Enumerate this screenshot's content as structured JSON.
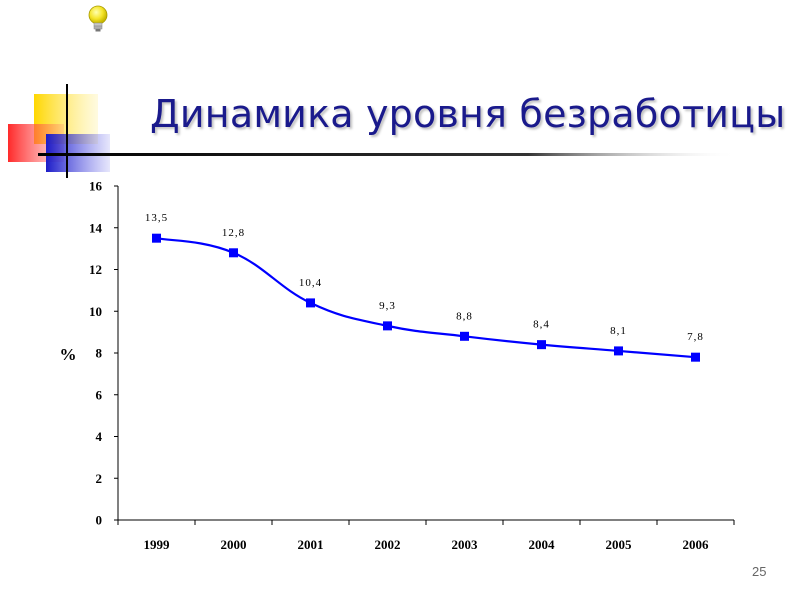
{
  "slide": {
    "title": "Динамика уровня безработицы",
    "page_number": "25",
    "icon": "lightbulb-icon"
  },
  "colors": {
    "title": "#1a1a8c",
    "series": "#0000ff",
    "deco_yellow": "#ffd700",
    "deco_red": "#ff3b3b",
    "deco_blue": "#2b2bd8"
  },
  "chart_data": {
    "type": "line",
    "categories": [
      "1999",
      "2000",
      "2001",
      "2002",
      "2003",
      "2004",
      "2005",
      "2006"
    ],
    "series": [
      {
        "values": [
          13.5,
          12.8,
          10.4,
          9.3,
          8.8,
          8.4,
          8.1,
          7.8
        ],
        "data_labels": [
          "13,5",
          "12,8",
          "10,4",
          "9,3",
          "8,8",
          "8,4",
          "8,1",
          "7,8"
        ]
      }
    ],
    "ylabel": "%",
    "xlabel": "",
    "ylim": [
      0,
      16
    ],
    "yticks": [
      "0",
      "2",
      "4",
      "6",
      "8",
      "10",
      "12",
      "14",
      "16"
    ],
    "grid": false,
    "smooth": true,
    "markers": "square"
  }
}
